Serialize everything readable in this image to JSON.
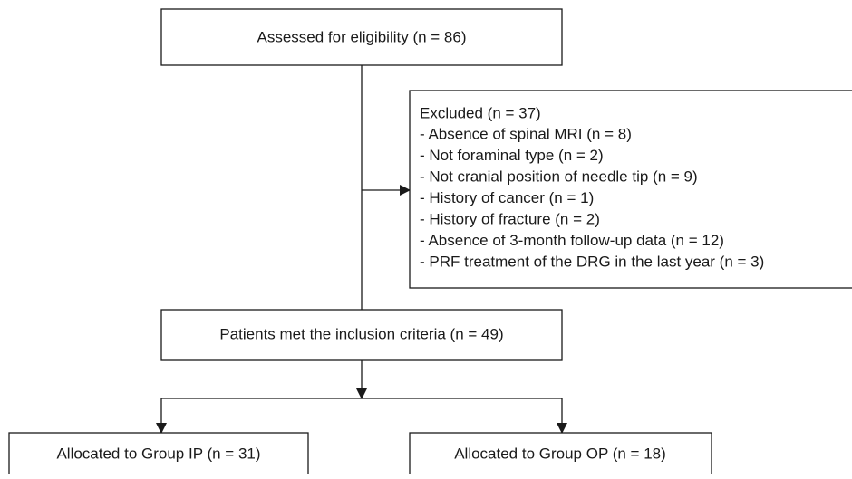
{
  "nodes": [
    {
      "label": "Assessed for eligibility (n = 86)"
    },
    {
      "label": "Excluded (n = 37)",
      "items": [
        "- Absence of spinal MRI (n = 8)",
        "- Not foraminal type (n = 2)",
        "- Not cranial position of needle tip (n = 9)",
        "- History of cancer (n = 1)",
        "- History of fracture (n = 2)",
        "- Absence of 3-month follow-up data (n = 12)",
        "- PRF treatment of the DRG in the last year (n = 3)"
      ]
    },
    {
      "label": "Patients met the inclusion criteria (n = 49)"
    },
    {
      "label": "Allocated to Group IP (n = 31)"
    },
    {
      "label": "Allocated to Group OP (n = 18)"
    }
  ]
}
